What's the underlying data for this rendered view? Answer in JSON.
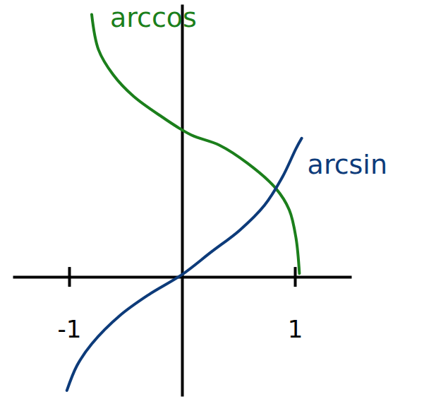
{
  "chart_data": {
    "type": "line",
    "series": [
      {
        "name": "arccos",
        "color": "#1b7f1b",
        "x": [
          -0.8,
          -0.74,
          -0.61,
          -0.43,
          -0.18,
          0.08,
          0.33,
          0.58,
          0.83,
          0.95,
          1.01,
          1.04
        ],
        "values": [
          2.31,
          2.0,
          1.78,
          1.59,
          1.41,
          1.25,
          1.16,
          1.0,
          0.78,
          0.59,
          0.34,
          0.03
        ]
      },
      {
        "name": "arcsin",
        "color": "#0d3b7a",
        "x": [
          -1.02,
          -0.93,
          -0.8,
          -0.55,
          -0.3,
          0,
          0.26,
          0.51,
          0.73,
          0.89,
          1.01,
          1.06
        ],
        "values": [
          -1.0,
          -0.78,
          -0.59,
          -0.34,
          -0.16,
          0.02,
          0.22,
          0.41,
          0.63,
          0.88,
          1.13,
          1.22
        ]
      }
    ],
    "xlim": [
      -1.5,
      1.5
    ],
    "xticks": [
      -1,
      1
    ],
    "ylim": [
      -1.05,
      2.4
    ],
    "tick_labels": "x"
  }
}
